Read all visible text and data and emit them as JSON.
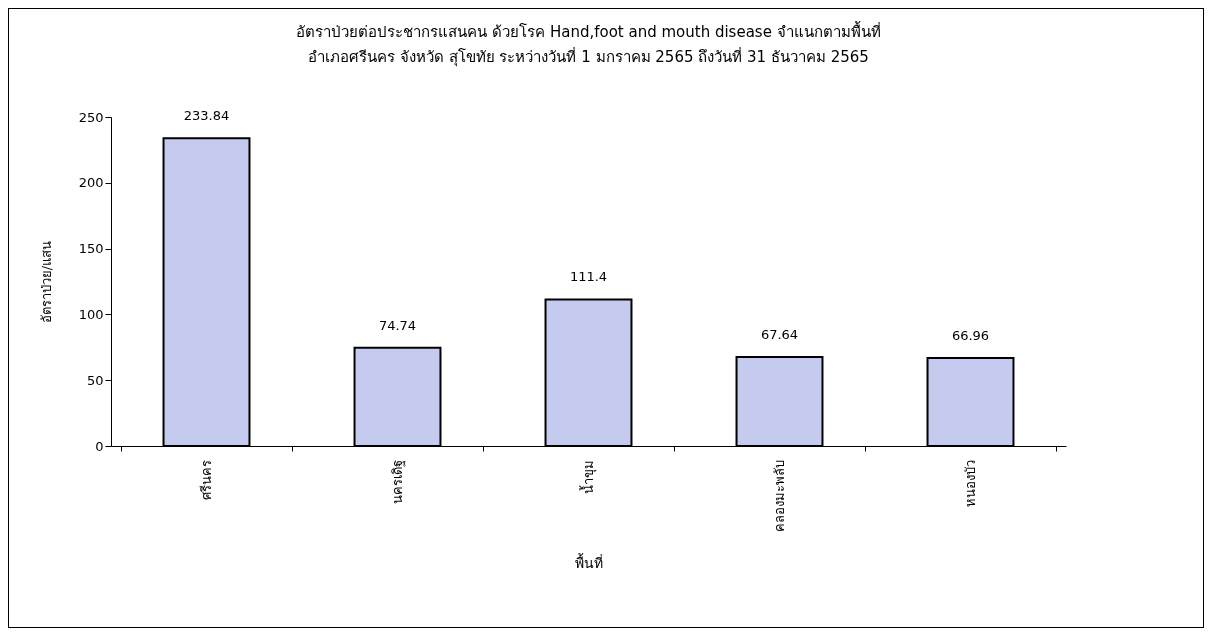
{
  "chart_data": {
    "type": "bar",
    "title": "อัตราป่วยต่อประชากรแสนคน  ด้วยโรค Hand,foot and mouth disease  จำแนกตามพื้นที่",
    "subtitle": "อำเภอศรีนคร จังหวัด สุโขทัย  ระหว่างวันที่  1 มกราคม 2565  ถึงวันที่  31 ธันวาคม 2565",
    "xlabel": "พื้นที่",
    "ylabel": "อัตราป่วย/แสน",
    "categories": [
      "ศรีนคร",
      "นครเดิฐ",
      "น้ำขุม",
      "คลองมะพลับ",
      "หนองบัว"
    ],
    "values": [
      233.84,
      74.74,
      111.4,
      67.64,
      66.96
    ],
    "color": "#c5cbef",
    "ylim": [
      0,
      250
    ],
    "yticks": [
      0,
      50,
      100,
      150,
      200,
      250
    ],
    "grid": false,
    "data_labels": true
  }
}
